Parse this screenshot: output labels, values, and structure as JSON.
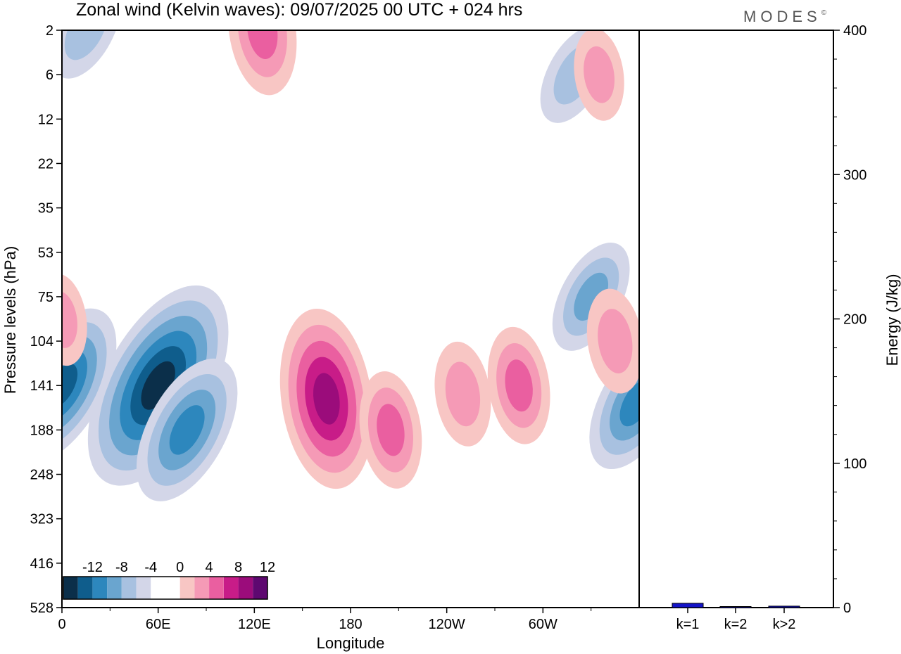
{
  "title": "Zonal wind (Kelvin waves):  09/07/2025  00 UTC  + 024 hrs",
  "brand": "MODES",
  "brand_mark": "©",
  "chart_data": [
    {
      "type": "heatmap",
      "xlabel": "Longitude",
      "ylabel": "Pressure levels (hPa)",
      "x_ticks": [
        "0",
        "60E",
        "120E",
        "180",
        "120W",
        "60W"
      ],
      "y_ticks": [
        "2",
        "6",
        "12",
        "22",
        "35",
        "53",
        "75",
        "104",
        "141",
        "188",
        "248",
        "323",
        "416",
        "528"
      ],
      "colorbar": {
        "labels": [
          "-12",
          "-8",
          "-4",
          "0",
          "4",
          "8",
          "12"
        ],
        "colors": [
          "#0b2f4a",
          "#0f5d8c",
          "#2d87bd",
          "#6aa5cf",
          "#a8c1e0",
          "#d3d6e8",
          "#ffffff",
          "#ffffff",
          "#f8c6c4",
          "#f59ab6",
          "#ea5fa0",
          "#c81c88",
          "#9b0c7b",
          "#5e0870"
        ]
      },
      "features": [
        {
          "sign": "negative",
          "peak": -14,
          "lon": 60,
          "level": 141
        },
        {
          "sign": "negative",
          "peak": -10,
          "lon": 0,
          "level": 141
        },
        {
          "sign": "negative",
          "peak": -9,
          "lon": 78,
          "level": 188
        },
        {
          "sign": "negative",
          "peak": -8,
          "lon": 358,
          "level": 160
        },
        {
          "sign": "negative",
          "peak": -6,
          "lon": 330,
          "level": 75
        },
        {
          "sign": "negative",
          "peak": -5,
          "lon": 320,
          "level": 6
        },
        {
          "sign": "negative",
          "peak": -5,
          "lon": 15,
          "level": 2
        },
        {
          "sign": "positive",
          "peak": 11,
          "lon": 165,
          "level": 155
        },
        {
          "sign": "positive",
          "peak": 6,
          "lon": 205,
          "level": 188
        },
        {
          "sign": "positive",
          "peak": 6,
          "lon": 285,
          "level": 141
        },
        {
          "sign": "positive",
          "peak": 5,
          "lon": 250,
          "level": 150
        },
        {
          "sign": "positive",
          "peak": 5,
          "lon": 345,
          "level": 104
        },
        {
          "sign": "positive",
          "peak": 4,
          "lon": 0,
          "level": 90
        },
        {
          "sign": "positive",
          "peak": 7,
          "lon": 125,
          "level": 2
        },
        {
          "sign": "positive",
          "peak": 4,
          "lon": 335,
          "level": 6
        }
      ]
    },
    {
      "type": "bar",
      "categories": [
        "k=1",
        "k=2",
        "k>2"
      ],
      "values": [
        3,
        0.3,
        1
      ],
      "ylabel": "Energy (J/kg)",
      "y_ticks": [
        "0",
        "100",
        "200",
        "300",
        "400"
      ],
      "ylim": [
        0,
        400
      ],
      "bar_color": "#1414c8"
    }
  ]
}
